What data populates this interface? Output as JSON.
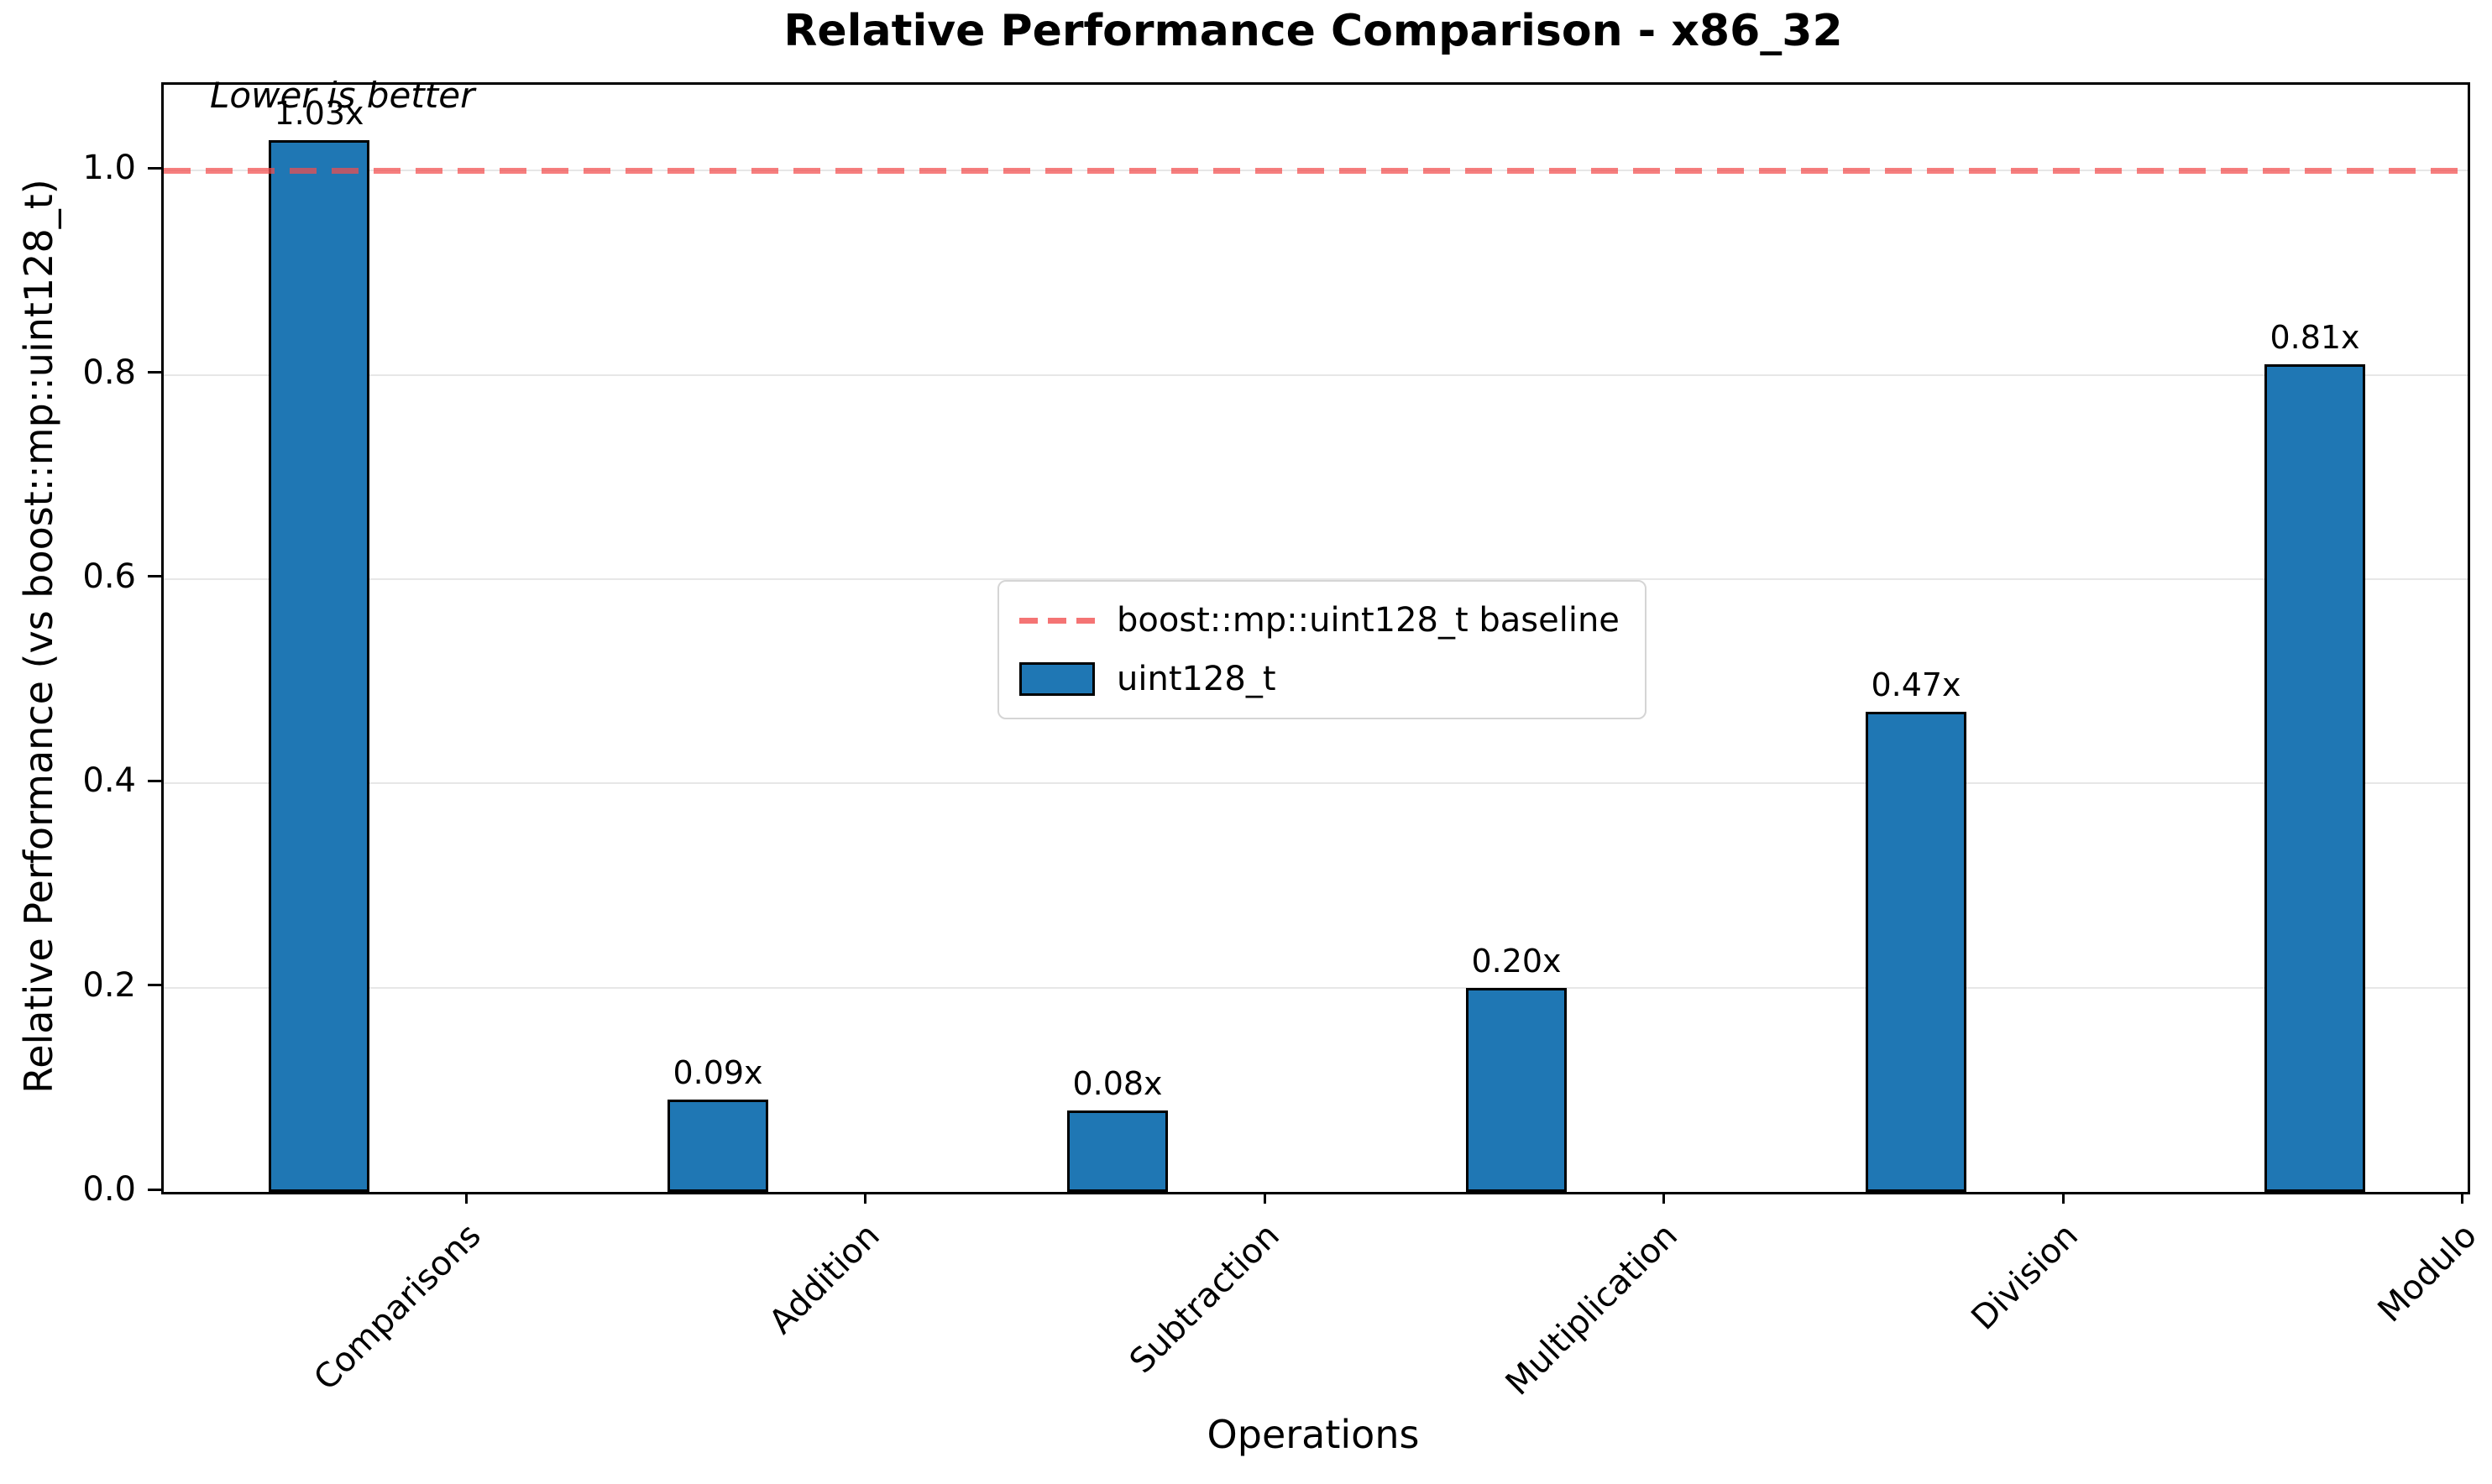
{
  "title": "Relative Performance Comparison - x86_32",
  "annotation": "Lower is better",
  "axes": {
    "xlabel": "Operations",
    "ylabel": "Relative Performance (vs boost::mp::uint128_t)"
  },
  "legend": {
    "items": [
      {
        "label": "boost::mp::uint128_t baseline",
        "marker": "dashed-line-sample"
      },
      {
        "label": "uint128_t",
        "marker": "bar-patch-sample"
      }
    ]
  },
  "chart_data": {
    "type": "bar",
    "categories": [
      "Comparisons",
      "Addition",
      "Subtraction",
      "Multiplication",
      "Division",
      "Modulo"
    ],
    "values": [
      1.03,
      0.09,
      0.08,
      0.2,
      0.47,
      0.81
    ],
    "value_labels": [
      "1.03x",
      "0.09x",
      "0.08x",
      "0.20x",
      "0.47x",
      "0.81x"
    ],
    "series_name": "uint128_t",
    "baseline": {
      "value": 1.0,
      "label": "boost::mp::uint128_t baseline"
    },
    "title": "Relative Performance Comparison - x86_32",
    "xlabel": "Operations",
    "ylabel": "Relative Performance (vs boost::mp::uint128_t)",
    "ylim": [
      0.0,
      1.084
    ],
    "yticks": [
      0.0,
      0.2,
      0.4,
      0.6,
      0.8,
      1.0
    ],
    "ytick_labels": [
      "0.0",
      "0.2",
      "0.4",
      "0.6",
      "0.8",
      "1.0"
    ],
    "grid": "horizontal",
    "legend_position": "center",
    "annotation": "Lower is better",
    "colors": {
      "bar_fill": "#1f77b4",
      "bar_edge": "#000000",
      "baseline": "rgba(242,77,77,0.72)",
      "grid": "#e7e7e7",
      "spine": "#000000"
    }
  }
}
